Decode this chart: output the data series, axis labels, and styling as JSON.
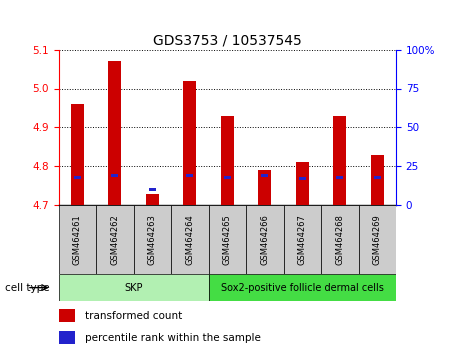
{
  "title": "GDS3753 / 10537545",
  "samples": [
    "GSM464261",
    "GSM464262",
    "GSM464263",
    "GSM464264",
    "GSM464265",
    "GSM464266",
    "GSM464267",
    "GSM464268",
    "GSM464269"
  ],
  "transformed_counts": [
    4.96,
    5.07,
    4.73,
    5.02,
    4.93,
    4.79,
    4.81,
    4.93,
    4.83
  ],
  "percentile_ranks": [
    18,
    19,
    10,
    19,
    18,
    19,
    17,
    18,
    18
  ],
  "y_min": 4.7,
  "y_max": 5.1,
  "y_ticks": [
    4.7,
    4.8,
    4.9,
    5.0,
    5.1
  ],
  "right_y_ticks": [
    0,
    25,
    50,
    75,
    100
  ],
  "right_y_labels": [
    "0",
    "25",
    "50",
    "75",
    "100%"
  ],
  "bar_color": "#cc0000",
  "percentile_color": "#2222cc",
  "skp_color": "#b2f0b2",
  "sox2_color": "#44dd44",
  "cell_type_groups": [
    {
      "label": "SKP",
      "start": 0,
      "end": 3
    },
    {
      "label": "Sox2-positive follicle dermal cells",
      "start": 4,
      "end": 8
    }
  ],
  "cell_type_label": "cell type",
  "legend_transformed": "transformed count",
  "legend_percentile": "percentile rank within the sample",
  "bar_width": 0.35,
  "base_value": 4.7,
  "percentile_scale_max": 100,
  "sample_box_color": "#cccccc",
  "title_fontsize": 10,
  "tick_fontsize": 7.5,
  "label_fontsize": 7.5,
  "legend_fontsize": 7.5
}
